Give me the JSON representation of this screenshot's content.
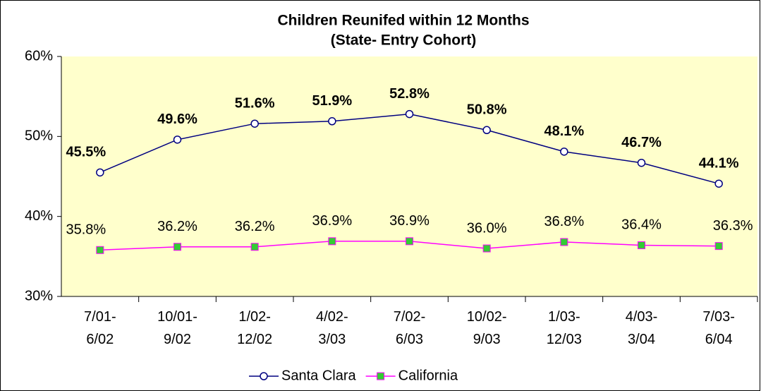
{
  "chart_data": {
    "type": "line",
    "title": "Children Reunifed within 12 Months",
    "subtitle": "(State- Entry Cohort)",
    "categories": [
      "7/01-\n6/02",
      "10/01-\n9/02",
      "1/02-\n12/02",
      "4/02-\n3/03",
      "7/02-\n6/03",
      "10/02-\n9/03",
      "1/03-\n12/03",
      "4/03-\n3/04",
      "7/03-\n6/04"
    ],
    "series": [
      {
        "name": "Santa Clara",
        "color": "#000080",
        "marker": "circle",
        "marker_fill": "#ffffff",
        "label_bold": true,
        "values": [
          45.5,
          49.6,
          51.6,
          51.9,
          52.8,
          50.8,
          48.1,
          46.7,
          44.1
        ],
        "value_labels": [
          "45.5%",
          "49.6%",
          "51.6%",
          "51.9%",
          "52.8%",
          "50.8%",
          "48.1%",
          "46.7%",
          "44.1%"
        ]
      },
      {
        "name": "California",
        "color": "#ff00ff",
        "marker": "square",
        "marker_fill": "#33cc33",
        "label_bold": false,
        "values": [
          35.8,
          36.2,
          36.2,
          36.9,
          36.9,
          36.0,
          36.8,
          36.4,
          36.3
        ],
        "value_labels": [
          "35.8%",
          "36.2%",
          "36.2%",
          "36.9%",
          "36.9%",
          "36.0%",
          "36.8%",
          "36.4%",
          "36.3%"
        ]
      }
    ],
    "ylim": [
      30,
      60
    ],
    "yticks": [
      {
        "value": 30,
        "label": "30%"
      },
      {
        "value": 40,
        "label": "40%"
      },
      {
        "value": 50,
        "label": "50%"
      },
      {
        "value": 60,
        "label": "60%"
      }
    ],
    "plot_background": "#ffffcc",
    "legend": "bottom"
  }
}
